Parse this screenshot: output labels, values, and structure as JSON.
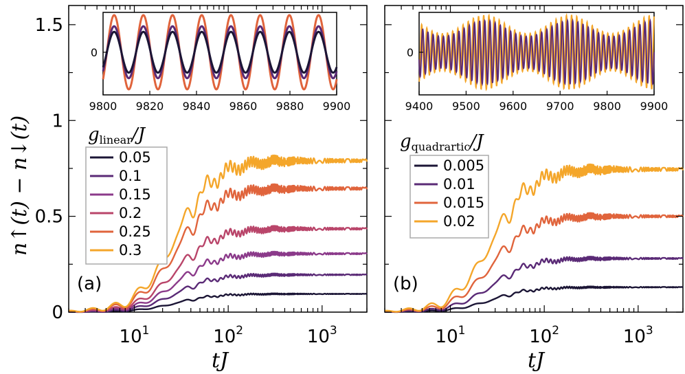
{
  "y_axis_label": "n↑(t) − n↓(t)",
  "colors": [
    "#1b1535",
    "#5a2a76",
    "#8b3a8a",
    "#b9456a",
    "#e0643c",
    "#f4a62a"
  ],
  "chart_data": [
    {
      "id": "a",
      "type": "line",
      "panel_label": "(a)",
      "xscale": "log",
      "xlim": [
        2,
        3000
      ],
      "ylim": [
        0,
        1.6
      ],
      "xlabel": "tJ",
      "ylabel": "n↑(t) − n↓(t)",
      "xticks": [
        10,
        100,
        1000
      ],
      "xtick_labels": [
        {
          "base": "10",
          "exp": "1"
        },
        {
          "base": "10",
          "exp": "2"
        },
        {
          "base": "10",
          "exp": "3"
        }
      ],
      "yticks": [
        0,
        0.5,
        1,
        1.5
      ],
      "ytick_labels": [
        "0",
        "0.5",
        "1",
        "1.5"
      ],
      "legend_title": {
        "main": "g",
        "sub": "linear",
        "tail": "/J"
      },
      "legend_position": "middle-left",
      "series": [
        {
          "name": "0.05",
          "plateau": 0.095
        },
        {
          "name": "0.1",
          "plateau": 0.195
        },
        {
          "name": "0.15",
          "plateau": 0.305
        },
        {
          "name": "0.2",
          "plateau": 0.435
        },
        {
          "name": "0.25",
          "plateau": 0.645
        },
        {
          "name": "0.3",
          "plateau": 0.79
        }
      ],
      "inset": {
        "xlim": [
          9800,
          9900
        ],
        "xticks": [
          9800,
          9820,
          9840,
          9860,
          9880,
          9900
        ],
        "xtick_labels": [
          "9800",
          "9820",
          "9840",
          "9860",
          "9880",
          "9900"
        ],
        "ytick_labels": [
          "0"
        ],
        "period": 12.5,
        "amplitudes": [
          0.55,
          0.7,
          1.0
        ],
        "series_colors": [
          0,
          1,
          4
        ]
      }
    },
    {
      "id": "b",
      "type": "line",
      "panel_label": "(b)",
      "xscale": "log",
      "xlim": [
        2,
        3000
      ],
      "ylim": [
        0,
        1.6
      ],
      "xlabel": "tJ",
      "xticks": [
        10,
        100,
        1000
      ],
      "xtick_labels": [
        {
          "base": "10",
          "exp": "1"
        },
        {
          "base": "10",
          "exp": "2"
        },
        {
          "base": "10",
          "exp": "3"
        }
      ],
      "legend_title": {
        "main": "g",
        "sub": "quadrartic",
        "tail": "/J"
      },
      "legend_position": "middle-left",
      "series": [
        {
          "name": "0.005",
          "plateau": 0.13,
          "color_index": 0
        },
        {
          "name": "0.01",
          "plateau": 0.28,
          "color_index": 1
        },
        {
          "name": "0.015",
          "plateau": 0.5,
          "color_index": 4
        },
        {
          "name": "0.02",
          "plateau": 0.745,
          "color_index": 5
        }
      ],
      "inset": {
        "xlim": [
          9400,
          9900
        ],
        "xticks": [
          9400,
          9500,
          9600,
          9700,
          9800,
          9900
        ],
        "xtick_labels": [
          "9400",
          "9500",
          "9600",
          "9700",
          "9800",
          "9900"
        ],
        "ytick_labels": [
          "0"
        ],
        "period": 11,
        "amplitudes": [
          0.85,
          1.0
        ],
        "series_colors": [
          1,
          5
        ]
      }
    }
  ]
}
